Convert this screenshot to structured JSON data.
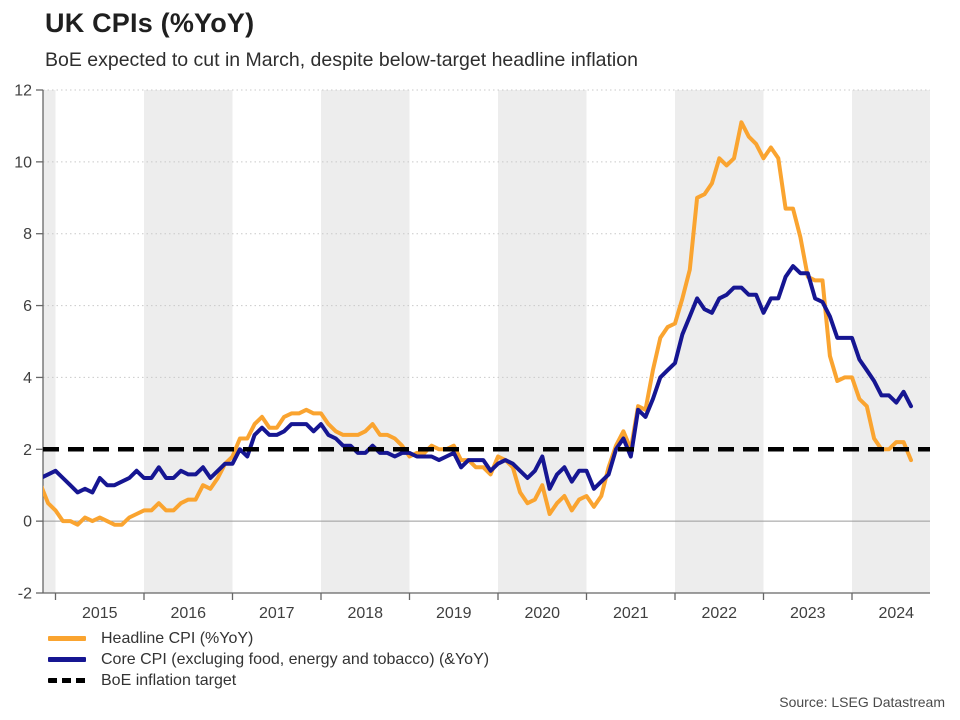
{
  "header": {
    "title": "UK CPIs (%YoY)",
    "subtitle": "BoE expected to cut in March, despite below-target headline inflation"
  },
  "source": {
    "text": "Source: LSEG Datastream"
  },
  "legend": {
    "items": [
      {
        "label": "Headline CPI (%YoY)",
        "color": "#FAA430",
        "style": "solid"
      },
      {
        "label": "Core CPI (excluging food, energy and tobacco) (&YoY)",
        "color": "#161692",
        "style": "solid"
      },
      {
        "label": "BoE inflation target",
        "color": "#000000",
        "style": "dashed"
      }
    ]
  },
  "chart_data": {
    "type": "line",
    "title": "UK CPIs (%YoY)",
    "subtitle": "BoE expected to cut in March, despite below-target headline inflation",
    "unit": "% year-on-year",
    "frequency": "monthly",
    "x_start": {
      "year": 2014,
      "month": 11
    },
    "x_end": {
      "year": 2024,
      "month": 9
    },
    "x_tick_labels": [
      "2015",
      "2016",
      "2017",
      "2018",
      "2019",
      "2020",
      "2021",
      "2022",
      "2023",
      "2024"
    ],
    "y_ticks": [
      -2,
      0,
      2,
      4,
      6,
      8,
      10,
      12
    ],
    "ylim": [
      -2,
      12
    ],
    "grid": "dotted horizontal on even values, solid line at 0, alternating grey year bands",
    "shaded_years": [
      2014,
      2016,
      2018,
      2020,
      2022,
      2024
    ],
    "band_color": "#EDEDED",
    "target_line": {
      "value": 2.0,
      "label": "BoE inflation target",
      "color": "#000000",
      "style": "dashed"
    },
    "legend_position": "bottom-left",
    "series": [
      {
        "name": "Headline CPI (%YoY)",
        "color": "#FAA430",
        "values": [
          1.0,
          0.5,
          0.3,
          0.0,
          0.0,
          -0.1,
          0.1,
          0.0,
          0.1,
          0.0,
          -0.1,
          -0.1,
          0.1,
          0.2,
          0.3,
          0.3,
          0.5,
          0.3,
          0.3,
          0.5,
          0.6,
          0.6,
          1.0,
          0.9,
          1.2,
          1.6,
          1.8,
          2.3,
          2.3,
          2.7,
          2.9,
          2.6,
          2.6,
          2.9,
          3.0,
          3.0,
          3.1,
          3.0,
          3.0,
          2.7,
          2.5,
          2.4,
          2.4,
          2.4,
          2.5,
          2.7,
          2.4,
          2.4,
          2.3,
          2.1,
          1.8,
          1.9,
          1.9,
          2.1,
          2.0,
          2.0,
          2.1,
          1.7,
          1.7,
          1.5,
          1.5,
          1.3,
          1.8,
          1.7,
          1.5,
          0.8,
          0.5,
          0.6,
          1.0,
          0.2,
          0.5,
          0.7,
          0.3,
          0.6,
          0.7,
          0.4,
          0.7,
          1.5,
          2.1,
          2.5,
          2.0,
          3.2,
          3.1,
          4.2,
          5.1,
          5.4,
          5.5,
          6.2,
          7.0,
          9.0,
          9.1,
          9.4,
          10.1,
          9.9,
          10.1,
          11.1,
          10.7,
          10.5,
          10.1,
          10.4,
          10.1,
          8.7,
          8.7,
          7.9,
          6.8,
          6.7,
          6.7,
          4.6,
          3.9,
          4.0,
          4.0,
          3.4,
          3.2,
          2.3,
          2.0,
          2.0,
          2.2,
          2.2,
          1.7
        ]
      },
      {
        "name": "Core CPI (excluging food, energy and tobacco) (&YoY)",
        "color": "#161692",
        "values": [
          1.2,
          1.3,
          1.4,
          1.2,
          1.0,
          0.8,
          0.9,
          0.8,
          1.2,
          1.0,
          1.0,
          1.1,
          1.2,
          1.4,
          1.2,
          1.2,
          1.5,
          1.2,
          1.2,
          1.4,
          1.3,
          1.3,
          1.5,
          1.2,
          1.4,
          1.6,
          1.6,
          2.0,
          1.8,
          2.4,
          2.6,
          2.4,
          2.4,
          2.5,
          2.7,
          2.7,
          2.7,
          2.5,
          2.7,
          2.4,
          2.3,
          2.1,
          2.1,
          1.9,
          1.9,
          2.1,
          1.9,
          1.9,
          1.8,
          1.9,
          1.9,
          1.8,
          1.8,
          1.8,
          1.7,
          1.8,
          1.9,
          1.5,
          1.7,
          1.7,
          1.7,
          1.4,
          1.6,
          1.7,
          1.6,
          1.4,
          1.2,
          1.4,
          1.8,
          0.9,
          1.3,
          1.5,
          1.1,
          1.4,
          1.4,
          0.9,
          1.1,
          1.3,
          2.0,
          2.3,
          1.8,
          3.1,
          2.9,
          3.4,
          4.0,
          4.2,
          4.4,
          5.2,
          5.7,
          6.2,
          5.9,
          5.8,
          6.2,
          6.3,
          6.5,
          6.5,
          6.3,
          6.3,
          5.8,
          6.2,
          6.2,
          6.8,
          7.1,
          6.9,
          6.9,
          6.2,
          6.1,
          5.7,
          5.1,
          5.1,
          5.1,
          4.5,
          4.2,
          3.9,
          3.5,
          3.5,
          3.3,
          3.6,
          3.2
        ]
      }
    ]
  }
}
